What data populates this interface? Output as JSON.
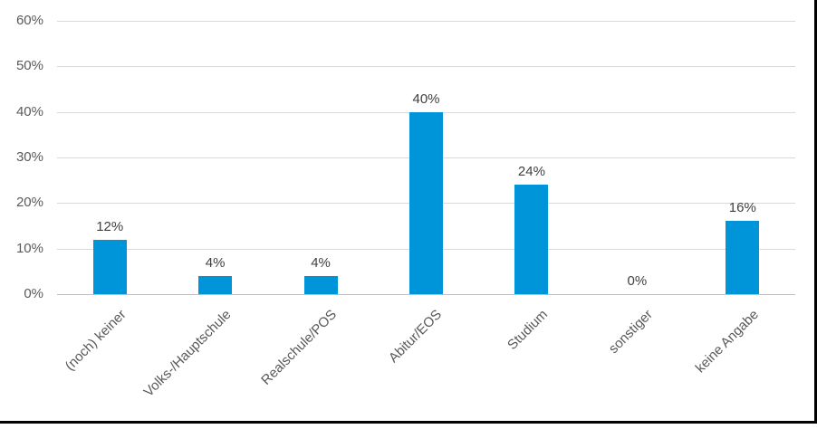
{
  "chart_data": {
    "type": "bar",
    "categories": [
      "(noch) keiner",
      "Volks-/Hauptschule",
      "Realschule/POS",
      "Abitur/EOS",
      "Studium",
      "sonstiger",
      "keine Angabe"
    ],
    "values": [
      12,
      4,
      4,
      40,
      24,
      0,
      16
    ],
    "data_labels": [
      "12%",
      "4%",
      "4%",
      "40%",
      "24%",
      "0%",
      "16%"
    ],
    "title": "",
    "xlabel": "",
    "ylabel": "",
    "ylim": [
      0,
      60
    ],
    "ytick_step": 10,
    "ytick_labels": [
      "0%",
      "10%",
      "20%",
      "30%",
      "40%",
      "50%",
      "60%"
    ],
    "grid": true,
    "legend": false,
    "colors": {
      "bar": "#0094D8",
      "gridline": "#D9D9D9",
      "axis_line": "#BFBFBF",
      "value_label": "#404040",
      "tick_label": "#595959"
    }
  }
}
